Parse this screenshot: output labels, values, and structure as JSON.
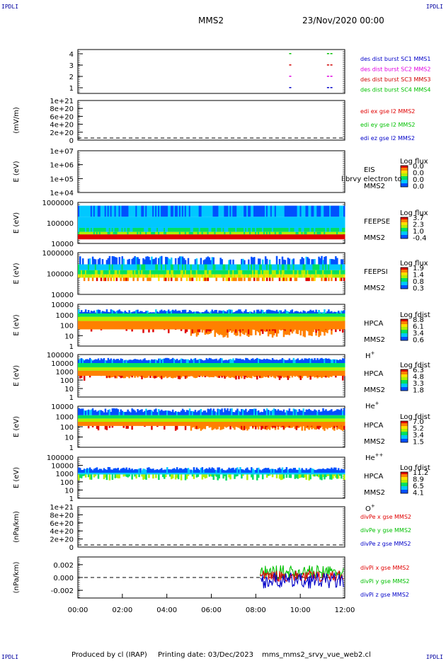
{
  "corner_label": "IPDLI",
  "header": {
    "spacecraft": "MMS2",
    "datetime": "23/Nov/2020 00:00"
  },
  "footer": {
    "produced_by": "Produced by cl (IRAP)",
    "printing_date": "Printing date: 03/Dec/2023",
    "script_name": "mms_mms2_srvy_vue_web2.cl"
  },
  "colors": {
    "mms1": "#0000c8",
    "mms2": "#e000e0",
    "mms3": "#d00000",
    "mms4": "#00c000",
    "comp_x": "#e00000",
    "comp_y": "#00c000",
    "comp_z": "#0000c8"
  },
  "chart_data": {
    "type": "multi-panel time-series / spectrogram",
    "x_axis": {
      "ticks": [
        "00:00",
        "02:00",
        "04:00",
        "06:00",
        "08:00",
        "10:00",
        "12:00"
      ],
      "range_hours": [
        0,
        12
      ]
    },
    "panels": [
      {
        "id": "burst",
        "type": "scatter",
        "yticks": [
          "4",
          "3",
          "2",
          "1"
        ],
        "legend": [
          "des dist burst SC1 MMS1",
          "des dist burst SC2 MMS2",
          "des dist burst SC3 MMS3",
          "des dist burst SC4 MMS4"
        ],
        "series": [
          {
            "y": 4,
            "x_hours": [
              9.5,
              11.2,
              11.35
            ]
          },
          {
            "y": 3,
            "x_hours": [
              9.5,
              11.2,
              11.35
            ]
          },
          {
            "y": 2,
            "x_hours": [
              9.5,
              11.2,
              11.35
            ]
          },
          {
            "y": 1,
            "x_hours": [
              9.5,
              11.2,
              11.35
            ]
          }
        ]
      },
      {
        "id": "edi",
        "type": "line",
        "ylabel": "(mV/m)",
        "yticks": [
          "1e+21",
          "8e+20",
          "6e+20",
          "4e+20",
          "2e+20",
          "0"
        ],
        "legend": [
          "edi ex gse l2 MMS2",
          "edi ey gse l2 MMS2",
          "edi ez gse l2 MMS2"
        ]
      },
      {
        "id": "eis",
        "type": "heatmap",
        "ylabel": "E (eV)",
        "yticks": [
          "1e+07",
          "1e+06",
          "1e+05",
          "1e+04"
        ],
        "labels": [
          "EIS",
          "MMS2"
        ],
        "overlay_text": "l brvy electron to",
        "cbar": {
          "title": "Log flux",
          "ticks": [
            "0.0",
            "0.0",
            "0.0",
            "0.0"
          ]
        }
      },
      {
        "id": "feepse",
        "type": "heatmap",
        "ylabel": "E (eV)",
        "yticks": [
          "1000000",
          "100000",
          "10000"
        ],
        "labels": [
          "FEEPSE",
          "MMS2"
        ],
        "cbar": {
          "title": "Log flux",
          "ticks": [
            "3.7",
            "2.3",
            "1.0",
            "-0.4"
          ]
        }
      },
      {
        "id": "feepsi",
        "type": "heatmap",
        "ylabel": "E (eV)",
        "yticks": [
          "1000000",
          "100000",
          "10000"
        ],
        "labels": [
          "FEEPSI",
          "MMS2"
        ],
        "cbar": {
          "title": "Log flux",
          "ticks": [
            "1.9",
            "1.4",
            "0.8",
            "0.3"
          ]
        }
      },
      {
        "id": "hpca_h",
        "type": "heatmap",
        "ylabel": "E (eV)",
        "yticks": [
          "10000",
          "1000",
          "100",
          "10",
          "1"
        ],
        "labels": [
          "HPCA",
          "MMS2"
        ],
        "species": "H",
        "species_sup": "+",
        "cbar": {
          "title": "Log fdist",
          "ticks": [
            "8.8",
            "6.1",
            "3.4",
            "0.6"
          ]
        }
      },
      {
        "id": "hpca_he1",
        "type": "heatmap",
        "ylabel": "E (eV)",
        "yticks": [
          "100000",
          "10000",
          "1000",
          "100",
          "10",
          "1"
        ],
        "labels": [
          "HPCA",
          "MMS2"
        ],
        "species": "He",
        "species_sup": "+",
        "cbar": {
          "title": "Log fdist",
          "ticks": [
            "6.3",
            "4.8",
            "3.3",
            "1.8"
          ]
        }
      },
      {
        "id": "hpca_he2",
        "type": "heatmap",
        "ylabel": "E (eV)",
        "yticks": [
          "10000",
          "1000",
          "100",
          "10",
          "1"
        ],
        "labels": [
          "HPCA",
          "MMS2"
        ],
        "species": "He",
        "species_sup": "++",
        "cbar": {
          "title": "Log fdist",
          "ticks": [
            "7.0",
            "5.2",
            "3.4",
            "1.5"
          ]
        }
      },
      {
        "id": "hpca_o",
        "type": "heatmap",
        "ylabel": "E (eV)",
        "yticks": [
          "100000",
          "10000",
          "1000",
          "100",
          "10",
          "1"
        ],
        "labels": [
          "HPCA",
          "MMS2"
        ],
        "species": "O",
        "species_sup": "+",
        "cbar": {
          "title": "Log fdist",
          "ticks": [
            "11.2",
            "8.9",
            "6.5",
            "4.1"
          ]
        }
      },
      {
        "id": "divpe",
        "type": "line",
        "ylabel": "(nPa/km)",
        "yticks": [
          "1e+21",
          "8e+20",
          "6e+20",
          "4e+20",
          "2e+20",
          "0"
        ],
        "legend": [
          "divPe x gse MMS2",
          "divPe y gse MMS2",
          "divPe z gse MMS2"
        ]
      },
      {
        "id": "divpi",
        "type": "line",
        "ylabel": "(nPa/km)",
        "yticks": [
          "0.002",
          "0.000",
          "-0.002"
        ],
        "ylim": [
          -0.0032,
          0.0032
        ],
        "legend": [
          "divPi x gse MMS2",
          "divPi y gse MMS2",
          "divPi z gse MMS2"
        ],
        "data_start_hours": 8.2
      }
    ]
  }
}
